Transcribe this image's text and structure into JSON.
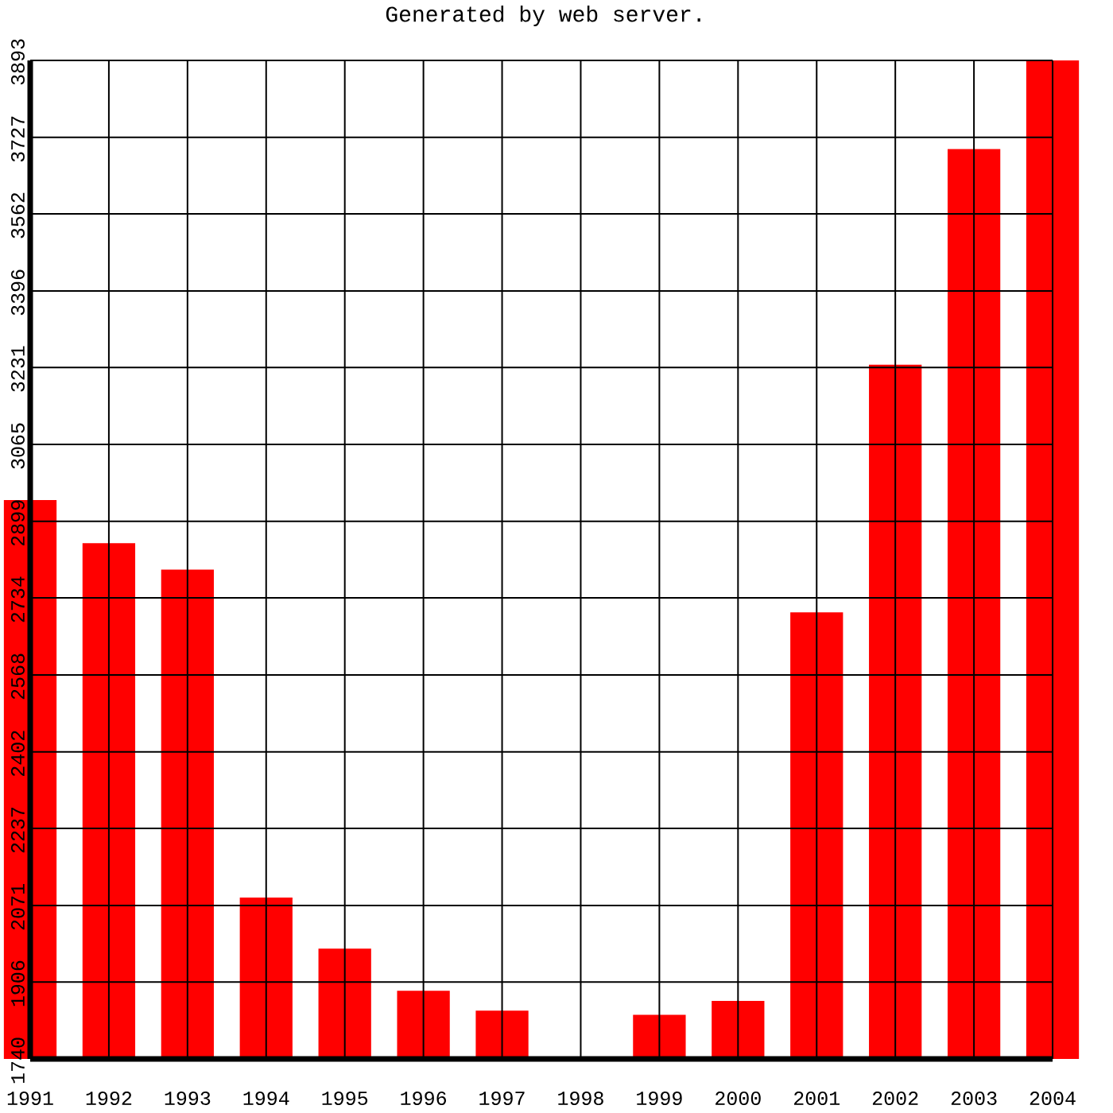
{
  "chart_data": {
    "type": "bar",
    "title": "Generated by web server.",
    "categories": [
      "1991",
      "1992",
      "1993",
      "1994",
      "1995",
      "1996",
      "1997",
      "1998",
      "1999",
      "2000",
      "2001",
      "2002",
      "2003",
      "2004"
    ],
    "values": [
      2945,
      2852,
      2795,
      2088,
      1978,
      1887,
      1844,
      1740,
      1835,
      1865,
      2703,
      3237,
      3702,
      3893
    ],
    "color": "#ff0000",
    "ylim": [
      1740,
      3893
    ],
    "yticks": [
      1740,
      1906,
      2071,
      2237,
      2402,
      2568,
      2734,
      2899,
      3065,
      3231,
      3396,
      3562,
      3727,
      3893
    ],
    "grid": true
  }
}
